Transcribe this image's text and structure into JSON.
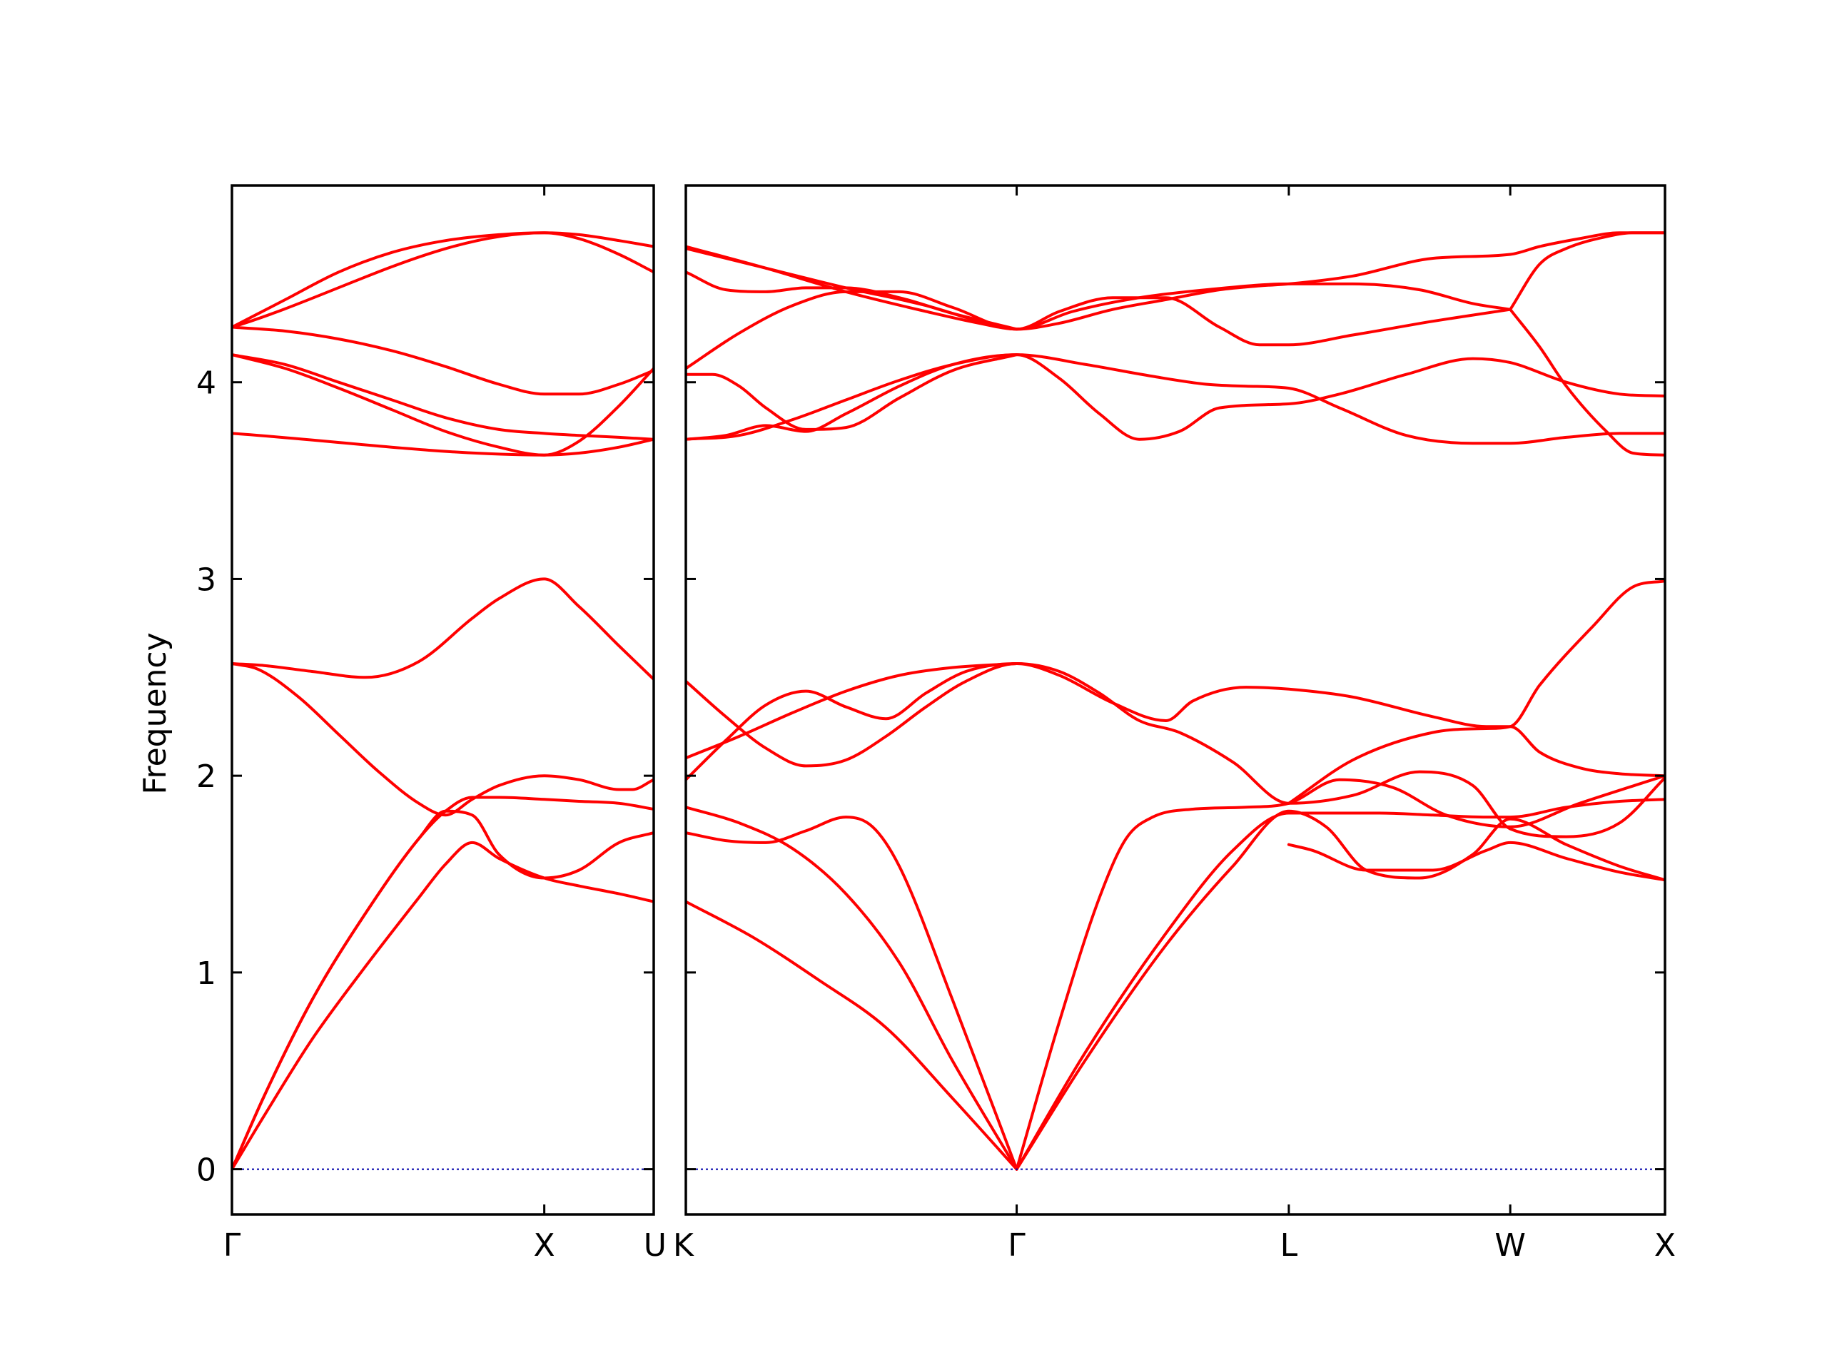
{
  "chart_data": {
    "type": "line",
    "ylabel": "Frequency",
    "ylim": [
      -0.23,
      5.0
    ],
    "yticks": [
      0,
      1,
      2,
      3,
      4
    ],
    "grid": false,
    "legend": "none",
    "colors": {
      "bands": "#ff0000",
      "zero_line": "#0000aa"
    },
    "panels": [
      {
        "x_range": [
          0,
          1.58
        ],
        "ticks": [
          {
            "x": 0,
            "label": "Γ"
          },
          {
            "x": 1.17,
            "label": "X"
          },
          {
            "x": 1.58,
            "label": "U"
          }
        ],
        "bands": [
          {
            "name": "band 1",
            "x": [
              0,
              0.12,
              0.3,
              0.5,
              0.7,
              0.8,
              0.9,
              1.0,
              1.17,
              1.3,
              1.45,
              1.58
            ],
            "y": [
              0,
              0.27,
              0.66,
              1.03,
              1.38,
              1.55,
              1.66,
              1.58,
              1.48,
              1.44,
              1.4,
              1.36
            ]
          },
          {
            "name": "band 2",
            "x": [
              0,
              0.12,
              0.3,
              0.5,
              0.7,
              0.8,
              0.9,
              1.0,
              1.17,
              1.3,
              1.45,
              1.58
            ],
            "y": [
              0,
              0.37,
              0.86,
              1.3,
              1.68,
              1.82,
              1.89,
              1.89,
              1.88,
              1.87,
              1.86,
              1.83
            ]
          },
          {
            "name": "band 3",
            "x": [
              0,
              0.12,
              0.3,
              0.5,
              0.7,
              0.8,
              0.9,
              1.0,
              1.17,
              1.3,
              1.45,
              1.58
            ],
            "y": [
              0,
              0.37,
              0.86,
              1.3,
              1.68,
              1.82,
              1.8,
              1.6,
              1.48,
              1.52,
              1.66,
              1.71
            ]
          },
          {
            "name": "band 4",
            "x": [
              0,
              0.1,
              0.25,
              0.4,
              0.55,
              0.7,
              0.8,
              0.9,
              1.0,
              1.17,
              1.3,
              1.45,
              1.5,
              1.58
            ],
            "y": [
              2.57,
              2.54,
              2.4,
              2.21,
              2.02,
              1.86,
              1.8,
              1.88,
              1.95,
              2.0,
              1.98,
              1.93,
              1.93,
              1.98
            ]
          },
          {
            "name": "band 5",
            "x": [
              0,
              0.12,
              0.3,
              0.5,
              0.7,
              0.9,
              1.0,
              1.17,
              1.3,
              1.45,
              1.58
            ],
            "y": [
              2.57,
              2.56,
              2.53,
              2.5,
              2.58,
              2.8,
              2.9,
              3.0,
              2.86,
              2.66,
              2.49
            ]
          },
          {
            "name": "band 6",
            "x": [
              0,
              0.2,
              0.4,
              0.6,
              0.8,
              1.0,
              1.17,
              1.3,
              1.45,
              1.58
            ],
            "y": [
              4.14,
              4.07,
              3.97,
              3.86,
              3.75,
              3.67,
              3.63,
              3.64,
              3.67,
              3.71
            ]
          },
          {
            "name": "band 7",
            "x": [
              0,
              0.2,
              0.4,
              0.6,
              0.8,
              1.0,
              1.17,
              1.3,
              1.45,
              1.58
            ],
            "y": [
              4.14,
              4.09,
              4.0,
              3.91,
              3.82,
              3.76,
              3.74,
              3.73,
              3.72,
              3.71
            ]
          },
          {
            "name": "band 8",
            "x": [
              0,
              0.2,
              0.4,
              0.6,
              0.8,
              1.0,
              1.17,
              1.3,
              1.45,
              1.58
            ],
            "y": [
              4.28,
              4.26,
              4.22,
              4.16,
              4.08,
              3.99,
              3.94,
              3.94,
              3.99,
              4.06
            ]
          },
          {
            "name": "band 9",
            "x": [
              0,
              1.17,
              1.3,
              1.45,
              1.58
            ],
            "y": [
              3.74,
              3.63,
              3.7,
              3.88,
              4.07
            ]
          },
          {
            "name": "band 10",
            "x": [
              0,
              0.2,
              0.4,
              0.6,
              0.8,
              1.0,
              1.17,
              1.3,
              1.45,
              1.58
            ],
            "y": [
              4.28,
              4.42,
              4.56,
              4.66,
              4.72,
              4.75,
              4.76,
              4.75,
              4.72,
              4.69
            ]
          },
          {
            "name": "band 11",
            "x": [
              0,
              1.17,
              1.3,
              1.45,
              1.58
            ],
            "y": [
              4.28,
              4.76,
              4.73,
              4.65,
              4.56
            ]
          },
          {
            "name": "zero",
            "x": [
              0,
              1.58
            ],
            "y": [
              0,
              0
            ],
            "style": "dotted"
          }
        ]
      },
      {
        "x_range": [
          0,
          3.67
        ],
        "ticks": [
          {
            "x": 0,
            "label": "K"
          },
          {
            "x": 1.24,
            "label": "Γ"
          },
          {
            "x": 2.26,
            "label": "L"
          },
          {
            "x": 3.09,
            "label": "W"
          },
          {
            "x": 3.67,
            "label": "X"
          }
        ],
        "bands": [
          {
            "name": "band 1",
            "x": [
              0,
              0.25,
              0.5,
              0.75,
              1.0,
              1.24
            ],
            "y": [
              1.36,
              1.18,
              0.96,
              0.72,
              0.36,
              0
            ]
          },
          {
            "name": "band 2",
            "x": [
              0,
              0.2,
              0.4,
              0.6,
              0.8,
              1.0,
              1.24
            ],
            "y": [
              1.84,
              1.76,
              1.63,
              1.4,
              1.05,
              0.55,
              0
            ]
          },
          {
            "name": "band 3",
            "x": [
              0,
              0.15,
              0.3,
              0.45,
              0.6,
              0.7,
              0.8,
              1.0,
              1.24
            ],
            "y": [
              1.71,
              1.67,
              1.66,
              1.72,
              1.79,
              1.74,
              1.54,
              0.86,
              0
            ]
          },
          {
            "name": "band 4",
            "x": [
              1.24,
              1.4,
              1.55,
              1.65,
              1.75,
              1.9,
              2.1,
              2.26,
              2.45,
              2.65,
              2.85,
              3.09,
              3.35,
              3.67
            ],
            "y": [
              0,
              0.75,
              1.38,
              1.68,
              1.79,
              1.83,
              1.84,
              1.86,
              1.98,
              1.94,
              1.8,
              1.74,
              1.86,
              2.0
            ]
          },
          {
            "name": "band 5",
            "x": [
              1.24,
              1.5,
              1.8,
              2.05,
              2.26,
              2.4,
              2.6,
              2.8,
              3.0,
              3.09,
              3.3,
              3.5,
              3.67
            ],
            "y": [
              0,
              0.6,
              1.2,
              1.62,
              1.81,
              1.81,
              1.81,
              1.8,
              1.79,
              1.79,
              1.84,
              1.87,
              1.88
            ]
          },
          {
            "name": "band 6",
            "x": [
              1.24,
              1.5,
              1.8,
              2.05,
              2.26,
              2.4,
              2.55,
              2.75,
              2.95,
              3.09,
              3.3,
              3.5,
              3.67
            ],
            "y": [
              0,
              0.56,
              1.14,
              1.54,
              1.82,
              1.74,
              1.52,
              1.48,
              1.6,
              1.78,
              1.65,
              1.54,
              1.47
            ]
          },
          {
            "name": "band 7",
            "x": [
              2.26,
              2.35,
              2.55,
              2.8,
              3.0,
              3.09,
              3.3,
              3.5,
              3.67
            ],
            "y": [
              1.65,
              1.62,
              1.52,
              1.52,
              1.62,
              1.66,
              1.58,
              1.51,
              1.47
            ]
          },
          {
            "name": "band 8",
            "x": [
              0,
              0.15,
              0.3,
              0.45,
              0.6,
              0.75,
              0.9,
              1.05,
              1.24,
              1.4,
              1.55,
              1.7,
              1.85,
              2.05,
              2.26,
              2.5,
              2.75,
              2.95,
              3.09,
              3.3,
              3.5,
              3.67
            ],
            "y": [
              2.48,
              2.3,
              2.14,
              2.05,
              2.08,
              2.2,
              2.35,
              2.48,
              2.57,
              2.53,
              2.42,
              2.28,
              2.22,
              2.07,
              1.86,
              1.9,
              2.02,
              1.95,
              1.73,
              1.69,
              1.76,
              1.99
            ]
          },
          {
            "name": "band 9",
            "x": [
              0,
              0.15,
              0.3,
              0.45,
              0.6,
              0.75,
              0.9,
              1.05,
              1.24,
              1.4,
              1.6,
              1.8,
              1.9,
              2.1,
              2.26,
              2.5,
              2.8,
              3.0,
              3.09,
              3.2,
              3.35,
              3.5,
              3.67
            ],
            "y": [
              1.98,
              2.18,
              2.36,
              2.43,
              2.35,
              2.29,
              2.42,
              2.53,
              2.57,
              2.51,
              2.37,
              2.28,
              2.38,
              2.45,
              2.44,
              2.4,
              2.3,
              2.25,
              2.25,
              2.12,
              2.04,
              2.01,
              2.0
            ]
          },
          {
            "name": "band 10",
            "x": [
              0,
              0.2,
              0.4,
              0.6,
              0.8,
              1.0,
              1.24
            ],
            "y": [
              2.09,
              2.2,
              2.32,
              2.43,
              2.51,
              2.55,
              2.57
            ]
          },
          {
            "name": "band 11",
            "x": [
              2.26,
              2.5,
              2.8,
              3.0,
              3.09,
              3.2,
              3.4,
              3.55,
              3.67
            ],
            "y": [
              1.86,
              2.08,
              2.22,
              2.24,
              2.25,
              2.46,
              2.76,
              2.96,
              2.99
            ]
          },
          {
            "name": "band 12",
            "x": [
              0,
              0.2,
              0.4,
              0.6,
              0.8,
              1.0,
              1.24,
              1.5,
              1.75,
              1.95,
              2.1,
              2.26,
              2.45,
              2.7,
              2.95,
              3.09,
              3.3,
              3.5,
              3.67
            ],
            "y": [
              3.71,
              3.73,
              3.81,
              3.91,
              4.01,
              4.09,
              4.14,
              4.09,
              4.03,
              3.99,
              3.98,
              3.97,
              3.87,
              3.73,
              3.69,
              3.69,
              3.72,
              3.74,
              3.74
            ]
          },
          {
            "name": "band 13",
            "x": [
              0,
              0.15,
              0.3,
              0.45,
              0.6,
              0.8,
              1.0,
              1.24,
              1.4,
              1.55,
              1.7,
              1.85,
              2.0,
              2.26,
              2.45,
              2.7,
              2.95,
              3.09,
              3.3,
              3.5,
              3.67
            ],
            "y": [
              3.71,
              3.73,
              3.78,
              3.75,
              3.84,
              3.98,
              4.09,
              4.14,
              4.02,
              3.84,
              3.71,
              3.75,
              3.87,
              3.89,
              3.94,
              4.04,
              4.12,
              4.1,
              4.0,
              3.94,
              3.93
            ]
          },
          {
            "name": "band 14",
            "x": [
              0,
              0.1,
              0.2,
              0.3,
              0.45,
              0.6,
              0.8,
              1.0,
              1.24
            ],
            "y": [
              4.04,
              4.04,
              3.98,
              3.87,
              3.76,
              3.77,
              3.92,
              4.06,
              4.14
            ]
          },
          {
            "name": "band 15",
            "x": [
              0,
              0.2,
              0.4,
              0.6,
              0.8,
              1.0,
              1.24,
              1.45,
              1.7,
              1.95,
              2.26,
              2.5,
              2.75,
              2.95,
              3.09
            ],
            "y": [
              4.07,
              4.25,
              4.39,
              4.46,
              4.46,
              4.38,
              4.27,
              4.36,
              4.43,
              4.47,
              4.5,
              4.5,
              4.47,
              4.4,
              4.37
            ]
          },
          {
            "name": "band 16",
            "x": [
              0,
              0.15,
              0.3,
              0.45,
              0.6,
              0.8,
              1.0,
              1.24
            ],
            "y": [
              4.56,
              4.47,
              4.46,
              4.48,
              4.48,
              4.43,
              4.35,
              4.27
            ]
          },
          {
            "name": "band 17",
            "x": [
              0,
              0.3,
              0.6,
              0.9,
              1.1,
              1.24,
              1.4,
              1.6,
              1.8,
              2.0,
              2.15,
              2.26,
              2.5,
              2.8,
              3.09
            ],
            "y": [
              4.69,
              4.58,
              4.46,
              4.36,
              4.3,
              4.27,
              4.36,
              4.43,
              4.43,
              4.28,
              4.19,
              4.19,
              4.24,
              4.31,
              4.37
            ]
          },
          {
            "name": "band 18",
            "x": [
              0,
              0.3,
              0.6,
              0.9,
              1.1,
              1.24,
              1.4,
              1.6,
              1.8,
              2.0,
              2.15,
              2.26,
              2.5,
              2.8,
              3.09,
              3.2,
              3.35,
              3.5,
              3.67
            ],
            "y": [
              4.68,
              4.58,
              4.48,
              4.39,
              4.31,
              4.27,
              4.3,
              4.37,
              4.42,
              4.47,
              4.49,
              4.5,
              4.54,
              4.63,
              4.65,
              4.69,
              4.73,
              4.76,
              4.76
            ]
          },
          {
            "name": "band 19",
            "x": [
              3.09,
              3.2,
              3.3,
              3.45,
              3.55,
              3.67
            ],
            "y": [
              4.37,
              4.6,
              4.68,
              4.74,
              4.76,
              4.76
            ]
          },
          {
            "name": "band 20",
            "x": [
              3.09,
              3.2,
              3.3,
              3.45,
              3.55,
              3.67
            ],
            "y": [
              4.37,
              4.18,
              3.98,
              3.75,
              3.64,
              3.63
            ]
          },
          {
            "name": "zero",
            "x": [
              0,
              3.67
            ],
            "y": [
              0,
              0
            ],
            "style": "dotted"
          }
        ]
      }
    ]
  }
}
